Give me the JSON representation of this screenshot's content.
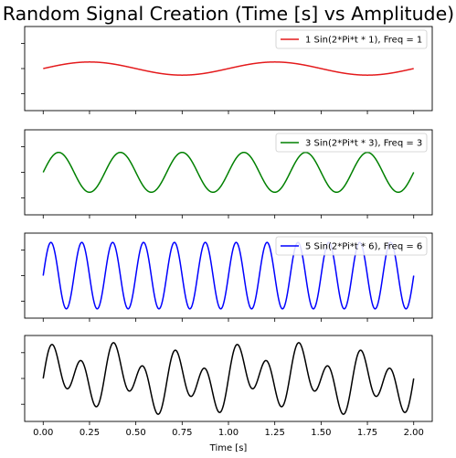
{
  "figure": {
    "title": "Random Signal Creation (Time [s] vs Amplitude)",
    "xlabel": "Time [s]"
  },
  "chart_data": [
    {
      "type": "line",
      "x": {
        "start": 0,
        "end": 2.0,
        "ticks": [
          0.0,
          0.25,
          0.5,
          0.75,
          1.0,
          1.25,
          1.5,
          1.75,
          2.0
        ]
      },
      "xlim": [
        -0.1,
        2.1
      ],
      "ylim": [
        -6.4,
        6.4
      ],
      "yticks_shown": false,
      "series": [
        {
          "name": "1 Sin(2*Pi*t * 1), Freq = 1",
          "amplitude": 1,
          "frequency": 1,
          "color": "#e41a1c"
        }
      ],
      "legend": "top-right"
    },
    {
      "type": "line",
      "x": {
        "start": 0,
        "end": 2.0,
        "ticks": [
          0.0,
          0.25,
          0.5,
          0.75,
          1.0,
          1.25,
          1.5,
          1.75,
          2.0
        ]
      },
      "xlim": [
        -0.1,
        2.1
      ],
      "ylim": [
        -6.4,
        6.4
      ],
      "yticks_shown": false,
      "series": [
        {
          "name": "3 Sin(2*Pi*t * 3), Freq = 3",
          "amplitude": 3,
          "frequency": 3,
          "color": "#008000"
        }
      ],
      "legend": "top-right"
    },
    {
      "type": "line",
      "x": {
        "start": 0,
        "end": 2.0,
        "ticks": [
          0.0,
          0.25,
          0.5,
          0.75,
          1.0,
          1.25,
          1.5,
          1.75,
          2.0
        ]
      },
      "xlim": [
        -0.1,
        2.1
      ],
      "ylim": [
        -6.4,
        6.4
      ],
      "yticks_shown": false,
      "series": [
        {
          "name": "5 Sin(2*Pi*t * 6), Freq = 6",
          "amplitude": 5,
          "frequency": 6,
          "color": "#0000ff"
        }
      ],
      "legend": "top-right"
    },
    {
      "type": "line",
      "x": {
        "start": 0,
        "end": 2.0,
        "ticks": [
          0.0,
          0.25,
          0.5,
          0.75,
          1.0,
          1.25,
          1.5,
          1.75,
          2.0
        ],
        "ticklabels": [
          "0.00",
          "0.25",
          "0.50",
          "0.75",
          "1.00",
          "1.25",
          "1.50",
          "1.75",
          "2.00"
        ]
      },
      "xlim": [
        -0.1,
        2.1
      ],
      "ylim": [
        -9.5,
        9.5
      ],
      "yticks_shown": false,
      "series": [
        {
          "components": [
            {
              "amplitude": 1,
              "frequency": 1
            },
            {
              "amplitude": 3,
              "frequency": 3
            },
            {
              "amplitude": 5,
              "frequency": 6
            }
          ],
          "color": "#000000"
        }
      ]
    }
  ]
}
